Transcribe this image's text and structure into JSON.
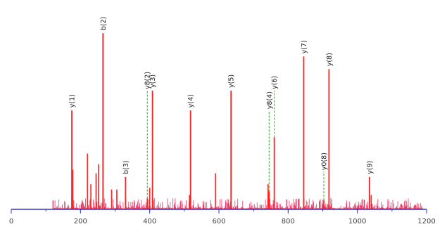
{
  "chart_data": {
    "type": "bar",
    "subtype": "mass-spectrum-stick-plot",
    "title": "",
    "xlabel": "",
    "ylabel": "",
    "xlim": [
      0,
      1200
    ],
    "ylim": [
      0,
      1
    ],
    "x_ticks": [
      "0",
      "200",
      "400",
      "600",
      "800",
      "1000",
      "1200"
    ],
    "grid": false,
    "legend": "none",
    "colors": {
      "peak": "#ff2222",
      "noise": "#e8003c",
      "axis": "#3333cc",
      "annotation_connector": "#22aa22",
      "annotation_text": "#222222"
    },
    "annotated_peaks": [
      {
        "label": "y(1)",
        "x": 175,
        "y": 0.55,
        "connector": "none"
      },
      {
        "label": "b(2)",
        "x": 265,
        "y": 0.98,
        "connector": "none"
      },
      {
        "label": "b(3)",
        "x": 330,
        "y": 0.18,
        "connector": "none"
      },
      {
        "label": "y(3)",
        "x": 408,
        "y": 0.66,
        "connector": "none"
      },
      {
        "label": "y8(2)",
        "x": 393,
        "y": 0.06,
        "connector": "dashed"
      },
      {
        "label": "y(4)",
        "x": 518,
        "y": 0.55,
        "connector": "none"
      },
      {
        "label": "y(5)",
        "x": 635,
        "y": 0.66,
        "connector": "none"
      },
      {
        "label": "y8(4)",
        "x": 745,
        "y": 0.1,
        "connector": "dashed"
      },
      {
        "label": "y(6)",
        "x": 760,
        "y": 0.4,
        "connector": "dashed"
      },
      {
        "label": "y(7)",
        "x": 845,
        "y": 0.85,
        "connector": "none"
      },
      {
        "label": "y(8)",
        "x": 918,
        "y": 0.78,
        "connector": "none"
      },
      {
        "label": "y0(8)",
        "x": 903,
        "y": 0.05,
        "connector": "dashed"
      },
      {
        "label": "y(9)",
        "x": 1035,
        "y": 0.18,
        "connector": "none"
      }
    ],
    "other_peaks": [
      {
        "x": 178,
        "y": 0.22
      },
      {
        "x": 220,
        "y": 0.31
      },
      {
        "x": 230,
        "y": 0.14
      },
      {
        "x": 245,
        "y": 0.2
      },
      {
        "x": 252,
        "y": 0.25
      },
      {
        "x": 290,
        "y": 0.11
      },
      {
        "x": 305,
        "y": 0.11
      },
      {
        "x": 400,
        "y": 0.12
      },
      {
        "x": 515,
        "y": 0.08
      },
      {
        "x": 590,
        "y": 0.2
      },
      {
        "x": 742,
        "y": 0.14
      },
      {
        "x": 1040,
        "y": 0.08
      }
    ]
  }
}
